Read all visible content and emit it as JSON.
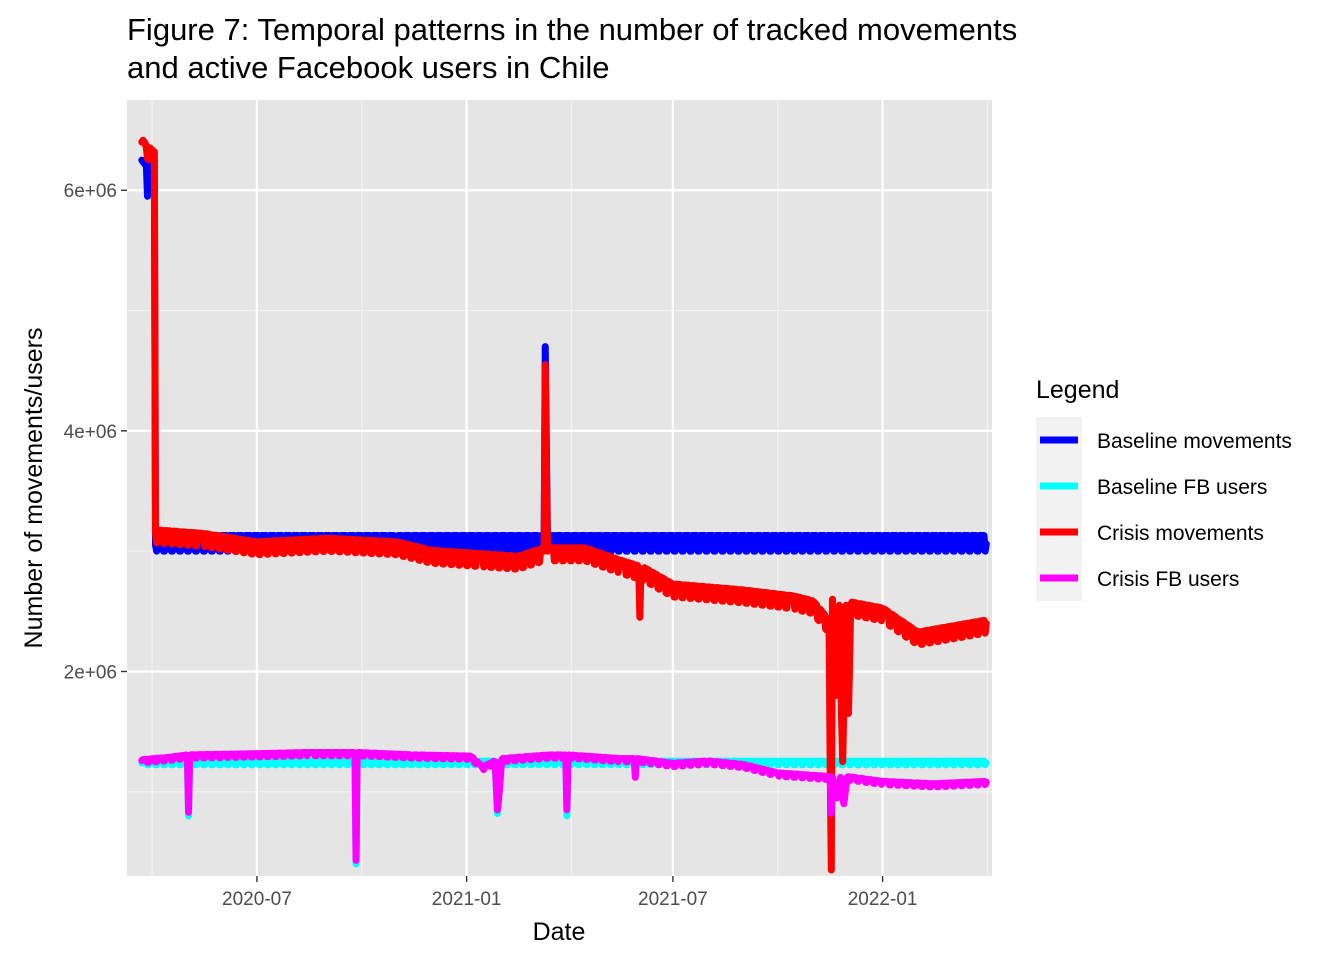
{
  "chart_data": {
    "type": "line",
    "title_line1": "Figure 7: Temporal patterns in the number of tracked movements",
    "title_line2": "and active Facebook users in Chile",
    "xlabel": "Date",
    "ylabel": "Number of movements/users",
    "x_axis": {
      "type": "date",
      "range": [
        "2020-03-09",
        "2022-04-07"
      ],
      "ticks": [
        {
          "date": "2020-07-01",
          "label": "2020-07"
        },
        {
          "date": "2021-01-01",
          "label": "2021-01"
        },
        {
          "date": "2021-07-01",
          "label": "2021-07"
        },
        {
          "date": "2022-01-01",
          "label": "2022-01"
        }
      ]
    },
    "y_axis": {
      "range": [
        300000,
        6750000
      ],
      "ticks": [
        {
          "value": 2000000,
          "label": "2e+06"
        },
        {
          "value": 4000000,
          "label": "4e+06"
        },
        {
          "value": 6000000,
          "label": "6e+06"
        }
      ]
    },
    "grid": true,
    "legend": {
      "title": "Legend",
      "position": "right",
      "items": [
        {
          "label": "Baseline movements",
          "color": "#0000FF"
        },
        {
          "label": "Baseline FB users",
          "color": "#00FFFF"
        },
        {
          "label": "Crisis movements",
          "color": "#FF0000"
        },
        {
          "label": "Crisis FB users",
          "color": "#FF00FF"
        }
      ]
    },
    "series": [
      {
        "name": "Baseline movements",
        "color": "#0000FF",
        "date_range": [
          "2020-03-22",
          "2022-04-02"
        ],
        "weekly_oscillation": [
          3000000,
          3130000
        ],
        "points": [
          [
            "2020-03-22",
            6250000
          ],
          [
            "2020-03-26",
            6200000
          ],
          [
            "2020-03-27",
            5950000
          ],
          [
            "2020-03-30",
            6250000
          ],
          [
            "2020-04-02",
            6250000
          ],
          [
            "2020-04-03",
            3050000
          ],
          [
            "2020-06-01",
            3060000
          ],
          [
            "2020-11-01",
            3060000
          ],
          [
            "2021-03-10",
            3080000
          ],
          [
            "2021-03-11",
            4700000
          ],
          [
            "2021-03-13",
            3080000
          ],
          [
            "2022-04-02",
            3060000
          ]
        ]
      },
      {
        "name": "Baseline FB users",
        "color": "#00FFFF",
        "date_range": [
          "2020-03-22",
          "2022-04-02"
        ],
        "weekly_oscillation": [
          1225000,
          1255000
        ],
        "points": [
          [
            "2020-03-22",
            1240000
          ],
          [
            "2020-05-01",
            1240000
          ],
          [
            "2020-05-02",
            800000
          ],
          [
            "2020-05-03",
            1240000
          ],
          [
            "2020-09-25",
            1240000
          ],
          [
            "2020-09-26",
            400000
          ],
          [
            "2020-09-27",
            1240000
          ],
          [
            "2021-01-26",
            1240000
          ],
          [
            "2021-01-28",
            820000
          ],
          [
            "2021-02-01",
            1240000
          ],
          [
            "2021-03-29",
            1240000
          ],
          [
            "2021-03-30",
            800000
          ],
          [
            "2021-03-31",
            1240000
          ],
          [
            "2022-04-02",
            1240000
          ]
        ]
      },
      {
        "name": "Crisis movements",
        "color": "#FF0000",
        "date_range": [
          "2020-03-22",
          "2022-04-02"
        ],
        "weekly_oscillation_amplitude": 80000,
        "points": [
          [
            "2020-03-22",
            6400000
          ],
          [
            "2020-03-26",
            6350000
          ],
          [
            "2020-04-01",
            6300000
          ],
          [
            "2020-04-02",
            6320000
          ],
          [
            "2020-04-03",
            3150000
          ],
          [
            "2020-05-15",
            3120000
          ],
          [
            "2020-07-01",
            3050000
          ],
          [
            "2020-09-01",
            3080000
          ],
          [
            "2020-11-01",
            3050000
          ],
          [
            "2020-12-01",
            2980000
          ],
          [
            "2021-01-15",
            2950000
          ],
          [
            "2021-02-15",
            2930000
          ],
          [
            "2021-03-10",
            3000000
          ],
          [
            "2021-03-11",
            4550000
          ],
          [
            "2021-03-13",
            3000000
          ],
          [
            "2021-04-15",
            3000000
          ],
          [
            "2021-05-15",
            2900000
          ],
          [
            "2021-06-01",
            2850000
          ],
          [
            "2021-06-02",
            2450000
          ],
          [
            "2021-06-03",
            2850000
          ],
          [
            "2021-07-01",
            2700000
          ],
          [
            "2021-09-01",
            2650000
          ],
          [
            "2021-10-15",
            2600000
          ],
          [
            "2021-11-01",
            2560000
          ],
          [
            "2021-11-15",
            2400000
          ],
          [
            "2021-11-16",
            1200000
          ],
          [
            "2021-11-17",
            350000
          ],
          [
            "2021-11-18",
            2600000
          ],
          [
            "2021-11-21",
            1800000
          ],
          [
            "2021-11-24",
            2550000
          ],
          [
            "2021-11-27",
            1250000
          ],
          [
            "2021-11-30",
            2550000
          ],
          [
            "2021-12-02",
            1650000
          ],
          [
            "2021-12-04",
            2550000
          ],
          [
            "2022-01-01",
            2500000
          ],
          [
            "2022-02-01",
            2300000
          ],
          [
            "2022-04-02",
            2400000
          ]
        ]
      },
      {
        "name": "Crisis FB users",
        "color": "#FF00FF",
        "date_range": [
          "2020-03-22",
          "2022-04-02"
        ],
        "weekly_oscillation_amplitude": 20000,
        "points": [
          [
            "2020-03-22",
            1260000
          ],
          [
            "2020-04-15",
            1280000
          ],
          [
            "2020-05-01",
            1300000
          ],
          [
            "2020-05-02",
            830000
          ],
          [
            "2020-05-03",
            1300000
          ],
          [
            "2020-07-01",
            1310000
          ],
          [
            "2020-08-15",
            1320000
          ],
          [
            "2020-09-25",
            1320000
          ],
          [
            "2020-09-26",
            430000
          ],
          [
            "2020-09-27",
            1320000
          ],
          [
            "2020-11-15",
            1300000
          ],
          [
            "2021-01-05",
            1290000
          ],
          [
            "2021-01-15",
            1200000
          ],
          [
            "2021-01-26",
            1250000
          ],
          [
            "2021-01-28",
            850000
          ],
          [
            "2021-02-01",
            1270000
          ],
          [
            "2021-03-15",
            1300000
          ],
          [
            "2021-03-29",
            1300000
          ],
          [
            "2021-03-30",
            850000
          ],
          [
            "2021-03-31",
            1300000
          ],
          [
            "2021-05-15",
            1270000
          ],
          [
            "2021-05-28",
            1270000
          ],
          [
            "2021-05-29",
            1120000
          ],
          [
            "2021-05-30",
            1270000
          ],
          [
            "2021-07-01",
            1230000
          ],
          [
            "2021-08-01",
            1250000
          ],
          [
            "2021-09-01",
            1220000
          ],
          [
            "2021-10-01",
            1150000
          ],
          [
            "2021-11-01",
            1130000
          ],
          [
            "2021-11-16",
            1120000
          ],
          [
            "2021-11-17",
            820000
          ],
          [
            "2021-11-18",
            1120000
          ],
          [
            "2021-11-22",
            950000
          ],
          [
            "2021-11-25",
            1120000
          ],
          [
            "2021-11-28",
            900000
          ],
          [
            "2021-12-01",
            1120000
          ],
          [
            "2022-01-01",
            1080000
          ],
          [
            "2022-02-15",
            1060000
          ],
          [
            "2022-04-02",
            1080000
          ]
        ]
      }
    ]
  }
}
